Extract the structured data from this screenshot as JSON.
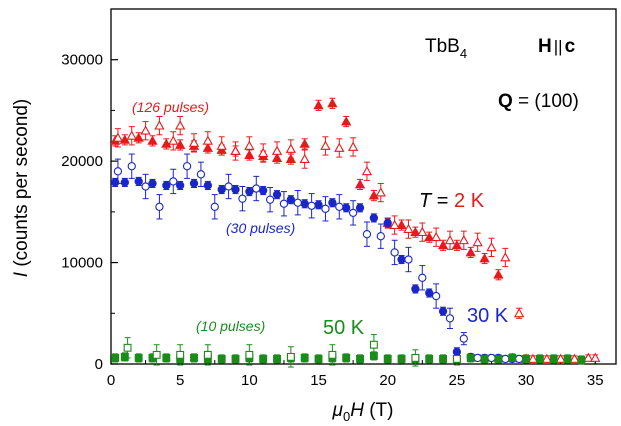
{
  "chart_data": {
    "type": "scatter",
    "xlabel_symbol": "μ",
    "xlabel_sub": "0",
    "xlabel_var": "H",
    "xlabel_unit": " (T)",
    "ylabel_var": "I",
    "ylabel_rest": " (counts per second)",
    "xlim": [
      0,
      36.5
    ],
    "ylim": [
      0,
      35000
    ],
    "xticks": [
      0,
      5,
      10,
      15,
      20,
      25,
      30,
      35
    ],
    "yticks": [
      0,
      10000,
      20000,
      30000
    ],
    "grid": false,
    "legend": "none",
    "annotations": {
      "compound": "TbB",
      "compound_sub": "4",
      "field_H": "H",
      "field_sep": "||",
      "field_c": "c",
      "q_label": "Q",
      "q_value": " = (100)",
      "t_var": "T",
      "t_eq": " = ",
      "t_2k": "2 K",
      "t_30k": "30 K",
      "t_50k": "50 K",
      "pulses_126": "(126 pulses)",
      "pulses_30": "(30 pulses)",
      "pulses_10": "(10 pulses)"
    },
    "colors": {
      "red": "#e8191a",
      "blue": "#1a26c9",
      "green": "#1a8c1a"
    },
    "series": [
      {
        "temperature": "2 K",
        "direction": "up",
        "marker": "filled-triangle",
        "color": "#e8191a",
        "x": [
          0.3,
          1.0,
          2.0,
          3.0,
          4.0,
          5.0,
          6.0,
          7.0,
          8.0,
          9.0,
          10.0,
          11.0,
          12.0,
          13.0,
          14.0,
          15.0,
          16.0,
          17.0,
          18.0,
          19.0,
          20.0,
          21.0,
          22.0,
          23.0,
          24.0,
          25.0,
          26.0,
          27.0,
          28.0,
          29.0,
          30.0
        ],
        "y": [
          22000,
          22100,
          22300,
          22000,
          21700,
          21600,
          21500,
          21300,
          21100,
          21000,
          20600,
          20500,
          20300,
          20200,
          21700,
          25500,
          25700,
          23900,
          17700,
          16600,
          13900,
          13700,
          13000,
          12500,
          11700,
          11700,
          11000,
          10400,
          8800,
          600,
          500
        ],
        "err": [
          500,
          500,
          500,
          500,
          500,
          500,
          500,
          500,
          500,
          500,
          500,
          500,
          500,
          500,
          500,
          500,
          500,
          500,
          500,
          500,
          500,
          500,
          500,
          500,
          500,
          500,
          500,
          500,
          500,
          300,
          300
        ]
      },
      {
        "temperature": "2 K",
        "direction": "down",
        "marker": "open-triangle",
        "color": "#e8191a",
        "x": [
          0.5,
          1.5,
          2.5,
          3.5,
          4.5,
          5.0,
          6.0,
          7.0,
          8.0,
          9.0,
          10.0,
          11.0,
          12.0,
          13.0,
          14.0,
          15.5,
          16.5,
          17.5,
          18.5,
          19.5,
          20.5,
          21.5,
          22.5,
          23.5,
          24.5,
          25.5,
          26.5,
          27.5,
          28.5,
          29.5,
          30.5,
          31.5,
          32.5,
          33.5,
          34.5,
          35.0
        ],
        "y": [
          22300,
          22500,
          23000,
          23500,
          22000,
          23500,
          21800,
          22000,
          21500,
          21000,
          21500,
          20800,
          21000,
          21200,
          20200,
          21500,
          21300,
          21400,
          19000,
          16900,
          13700,
          13300,
          13000,
          12500,
          12200,
          12200,
          12000,
          11500,
          10500,
          5000,
          500,
          500,
          500,
          500,
          600,
          600
        ],
        "err": [
          900,
          900,
          900,
          900,
          900,
          900,
          900,
          900,
          900,
          900,
          900,
          900,
          900,
          900,
          900,
          900,
          900,
          900,
          900,
          900,
          900,
          900,
          900,
          900,
          900,
          900,
          900,
          900,
          900,
          500,
          300,
          300,
          300,
          300,
          300,
          300
        ]
      },
      {
        "temperature": "30 K",
        "direction": "up",
        "marker": "filled-circle",
        "color": "#1a26c9",
        "x": [
          0.3,
          1.0,
          2.0,
          3.0,
          4.0,
          5.0,
          6.0,
          7.0,
          8.0,
          9.0,
          10.0,
          11.0,
          12.0,
          13.0,
          14.0,
          15.0,
          16.0,
          17.0,
          18.0,
          19.0,
          20.0,
          21.0,
          22.0,
          23.0,
          24.0,
          25.0,
          26.0,
          27.0,
          28.0,
          29.0
        ],
        "y": [
          17900,
          17900,
          18000,
          17800,
          17600,
          17600,
          17800,
          17600,
          17200,
          17200,
          17000,
          17100,
          16700,
          16200,
          15800,
          15700,
          15900,
          15400,
          15400,
          14400,
          13900,
          10300,
          7400,
          7000,
          5200,
          1200,
          700,
          600,
          600,
          500
        ],
        "err": [
          400,
          400,
          400,
          400,
          400,
          400,
          400,
          400,
          400,
          400,
          400,
          400,
          400,
          400,
          400,
          400,
          400,
          400,
          400,
          400,
          400,
          400,
          400,
          400,
          400,
          400,
          300,
          300,
          300,
          300
        ]
      },
      {
        "temperature": "30 K",
        "direction": "down",
        "marker": "open-circle",
        "color": "#1a26c9",
        "x": [
          0.5,
          1.5,
          2.5,
          3.5,
          4.5,
          5.5,
          6.5,
          7.5,
          8.5,
          9.5,
          10.5,
          11.5,
          12.5,
          13.5,
          14.5,
          15.5,
          16.5,
          17.5,
          18.5,
          19.5,
          20.5,
          21.5,
          22.5,
          23.5,
          24.5,
          25.5,
          26.5,
          27.5,
          28.5,
          29.5
        ],
        "y": [
          19000,
          19500,
          17500,
          15500,
          18000,
          19500,
          18700,
          15500,
          17500,
          16300,
          17300,
          16200,
          15800,
          15900,
          15600,
          15300,
          15500,
          14900,
          12800,
          12600,
          11000,
          10300,
          8500,
          6700,
          4500,
          2500,
          600,
          600,
          500,
          500
        ],
        "err": [
          1200,
          1200,
          1200,
          1200,
          1200,
          1200,
          1200,
          1200,
          1200,
          1200,
          1200,
          1200,
          1200,
          1200,
          1200,
          1200,
          1200,
          1200,
          1200,
          1200,
          1200,
          1200,
          1200,
          1200,
          1000,
          600,
          300,
          300,
          300,
          300
        ]
      },
      {
        "temperature": "50 K",
        "direction": "up",
        "marker": "filled-square",
        "color": "#1a8c1a",
        "x": [
          0.3,
          1.0,
          2.0,
          3.0,
          4.0,
          5.0,
          6.0,
          7.0,
          8.0,
          9.0,
          10.0,
          11.0,
          12.0,
          13.0,
          14.0,
          15.0,
          16.0,
          17.0,
          18.0,
          19.0,
          20.0,
          21.0,
          22.0,
          23.0,
          24.0,
          25.0,
          26.0,
          27.0,
          28.0,
          29.0,
          30.0,
          31.0,
          32.0,
          33.0,
          34.0
        ],
        "y": [
          600,
          700,
          600,
          600,
          600,
          500,
          600,
          500,
          500,
          500,
          600,
          500,
          500,
          600,
          600,
          500,
          600,
          600,
          500,
          800,
          500,
          500,
          500,
          500,
          500,
          500,
          600,
          500,
          500,
          600,
          500,
          500,
          500,
          500,
          400
        ],
        "err": [
          400,
          400,
          400,
          400,
          400,
          400,
          400,
          400,
          400,
          400,
          400,
          400,
          400,
          400,
          400,
          400,
          400,
          400,
          400,
          400,
          400,
          400,
          400,
          400,
          400,
          400,
          400,
          400,
          400,
          400,
          400,
          400,
          400,
          400,
          400
        ]
      },
      {
        "temperature": "50 K",
        "direction": "down",
        "marker": "open-square",
        "color": "#1a8c1a",
        "x": [
          1.2,
          3.3,
          5.0,
          7.0,
          10.0,
          13.0,
          16.0,
          19.0,
          22.0,
          25.0
        ],
        "y": [
          1600,
          900,
          900,
          900,
          900,
          700,
          900,
          1900,
          600,
          500
        ],
        "err": [
          1000,
          1000,
          1000,
          1000,
          1000,
          1000,
          1000,
          1000,
          800,
          600
        ]
      }
    ]
  }
}
